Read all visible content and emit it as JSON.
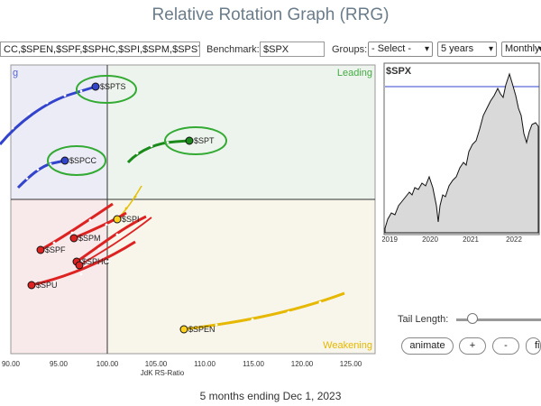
{
  "title": "Relative Rotation Graph (RRG)",
  "controls": {
    "symbols_value": "CC,$SPEN,$SPF,$SPHC,$SPI,$SPM,$SPST,$",
    "benchmark_label": "Benchmark:",
    "benchmark_value": "$SPX",
    "groups_label": "Groups:",
    "groups_value": "- Select -",
    "period_value": "5 years",
    "frequency_value": "Monthly"
  },
  "quadrants": {
    "leading": "Leading",
    "weakening": "Weakening",
    "improving_partial": "g"
  },
  "rrg": {
    "x_axis_label": "JdK RS-Ratio",
    "x_ticks": [
      "90.00",
      "95.00",
      "100.00",
      "105.00",
      "110.00",
      "115.00",
      "120.00",
      "125.00"
    ],
    "colors": {
      "leading": "#2a8a2a",
      "improving": "#3355cc",
      "lagging": "#dd2222",
      "weakening": "#e6b800"
    },
    "symbols": [
      {
        "name": "$SPTS",
        "color": "#3344cc",
        "highlight": true
      },
      {
        "name": "$SPCC",
        "color": "#3344cc",
        "highlight": true
      },
      {
        "name": "$SPT",
        "color": "#1a8a1a",
        "highlight": true
      },
      {
        "name": "$SPI",
        "color": "#e6c000",
        "highlight": false
      },
      {
        "name": "$SPM",
        "color": "#dd2222",
        "highlight": false
      },
      {
        "name": "$SPF",
        "color": "#dd2222",
        "highlight": false
      },
      {
        "name": "$SPHC",
        "color": "#dd2222",
        "highlight": false
      },
      {
        "name": "$SPU",
        "color": "#dd2222",
        "highlight": false
      },
      {
        "name": "$SPEN",
        "color": "#e6b800",
        "highlight": false
      }
    ]
  },
  "price_chart": {
    "symbol": "$SPX",
    "x_ticks": [
      "2019",
      "2020",
      "2021",
      "2022"
    ]
  },
  "tail_length_label": "Tail Length:",
  "buttons": {
    "animate": "animate",
    "plus": "+",
    "minus": "-",
    "fit": "fit"
  },
  "footer": "5 months ending Dec 1, 2023"
}
